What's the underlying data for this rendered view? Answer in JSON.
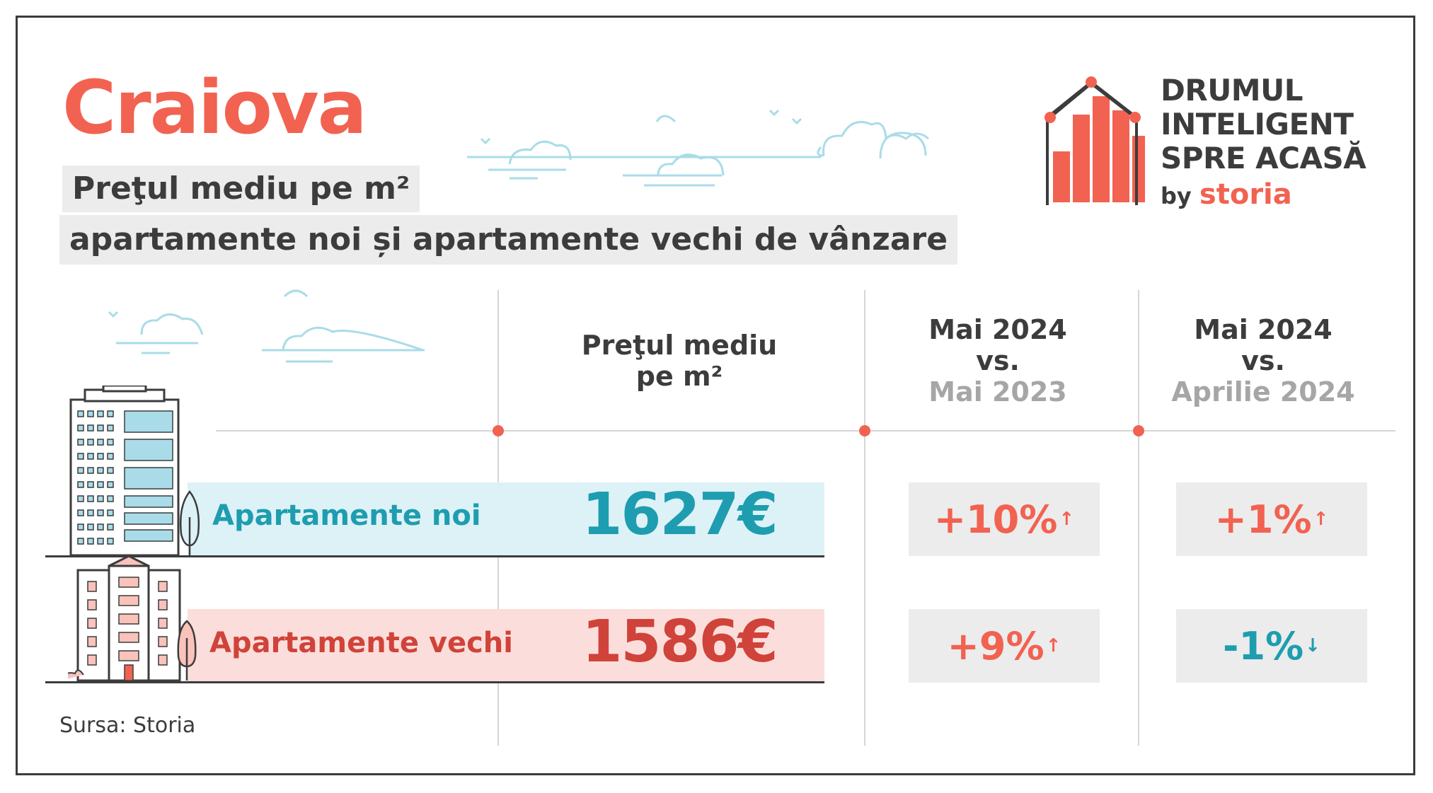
{
  "title": "Craiova",
  "subtitle_line1": "Preţul mediu pe m²",
  "subtitle_line2": "apartamente noi și apartamente vechi de vânzare",
  "logo": {
    "line1": "DRUMUL",
    "line2": "INTELIGENT",
    "line3": "SPRE ACASĂ",
    "by": "by",
    "brand": "storia"
  },
  "columns": {
    "price_header_line1": "Preţul mediu",
    "price_header_line2": "pe m²",
    "yoy_line1": "Mai 2024",
    "yoy_line2": "vs.",
    "yoy_line3": "Mai 2023",
    "mom_line1": "Mai 2024",
    "mom_line2": "vs.",
    "mom_line3": "Aprilie 2024"
  },
  "rows": [
    {
      "label": "Apartamente noi",
      "price": "1627€",
      "yoy": "+10%",
      "yoy_dir": "up",
      "mom": "+1%",
      "mom_dir": "up"
    },
    {
      "label": "Apartamente vechi",
      "price": "1586€",
      "yoy": "+9%",
      "yoy_dir": "up",
      "mom": "-1%",
      "mom_dir": "down"
    }
  ],
  "source": "Sursa: Storia",
  "colors": {
    "accent": "#f26251",
    "teal": "#1e9db0",
    "dark_red": "#d0433a",
    "new_row_bg": "#ddf2f7",
    "old_row_bg": "#fbdedb",
    "text": "#3c3c3c",
    "muted": "#a6a6a6"
  }
}
